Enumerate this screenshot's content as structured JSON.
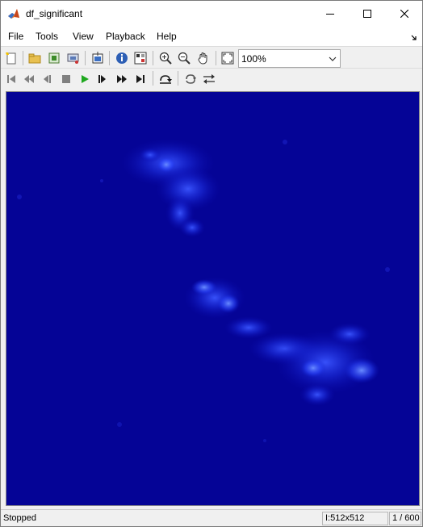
{
  "window": {
    "title": "df_significant"
  },
  "menu": [
    "File",
    "Tools",
    "View",
    "Playback",
    "Help"
  ],
  "toolbar": {
    "zoom": "100%"
  },
  "icons": {
    "app": "matlab-icon",
    "toolbar": [
      "new-figure-icon",
      "open-icon",
      "export-icon",
      "print-icon",
      "jump-to-icon",
      "info-icon",
      "pixel-region-icon",
      "zoom-in-icon",
      "zoom-out-icon",
      "pan-icon",
      "fit-to-window-icon"
    ],
    "playback": [
      "first-frame-icon",
      "rewind-icon",
      "step-back-icon",
      "stop-icon",
      "play-icon",
      "step-forward-icon",
      "fast-forward-icon",
      "last-frame-icon",
      "jump-to-frame-icon",
      "repeat-icon",
      "forward-backward-icon"
    ]
  },
  "colors": {
    "background": "#050496",
    "signal": "#2a3cff",
    "play": "#1fa81f"
  },
  "status": {
    "state": "Stopped",
    "dimensions": "I:512x512",
    "frame": "1 / 600"
  }
}
